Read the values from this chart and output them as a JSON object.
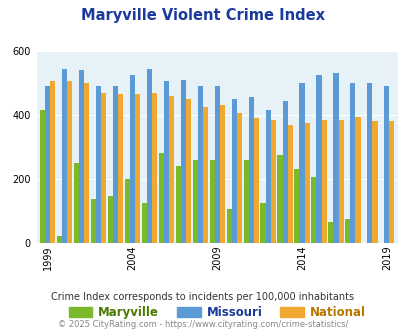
{
  "title": "Maryville Violent Crime Index",
  "title_color": "#1a3a9c",
  "subtitle": "Crime Index corresponds to incidents per 100,000 inhabitants",
  "footer": "© 2025 CityRating.com - https://www.cityrating.com/crime-statistics/",
  "years": [
    1999,
    2000,
    2001,
    2002,
    2003,
    2004,
    2005,
    2006,
    2007,
    2008,
    2009,
    2010,
    2011,
    2012,
    2013,
    2014,
    2015,
    2016,
    2017,
    2018,
    2019
  ],
  "maryville": [
    415,
    20,
    250,
    135,
    145,
    200,
    125,
    280,
    240,
    260,
    260,
    105,
    260,
    125,
    275,
    230,
    205,
    65,
    75,
    0,
    0
  ],
  "missouri": [
    490,
    545,
    540,
    490,
    490,
    525,
    545,
    505,
    510,
    490,
    490,
    450,
    455,
    415,
    445,
    500,
    525,
    530,
    500,
    500,
    490
  ],
  "national": [
    505,
    505,
    500,
    470,
    465,
    465,
    470,
    460,
    450,
    425,
    430,
    405,
    390,
    385,
    370,
    375,
    385,
    385,
    395,
    380,
    380
  ],
  "maryville_color": "#7aba2a",
  "missouri_color": "#5b9bd5",
  "national_color": "#f0a830",
  "bg_color": "#e6f2f7",
  "ylim": [
    0,
    600
  ],
  "yticks": [
    0,
    200,
    400,
    600
  ],
  "xtick_labels": [
    "1999",
    "2004",
    "2009",
    "2014",
    "2019"
  ],
  "xtick_positions": [
    0,
    5,
    10,
    15,
    20
  ],
  "legend_labels": [
    "Maryville",
    "Missouri",
    "National"
  ],
  "legend_label_colors": [
    "#4a7a00",
    "#1a3a9c",
    "#b87800"
  ],
  "n_years": 21
}
